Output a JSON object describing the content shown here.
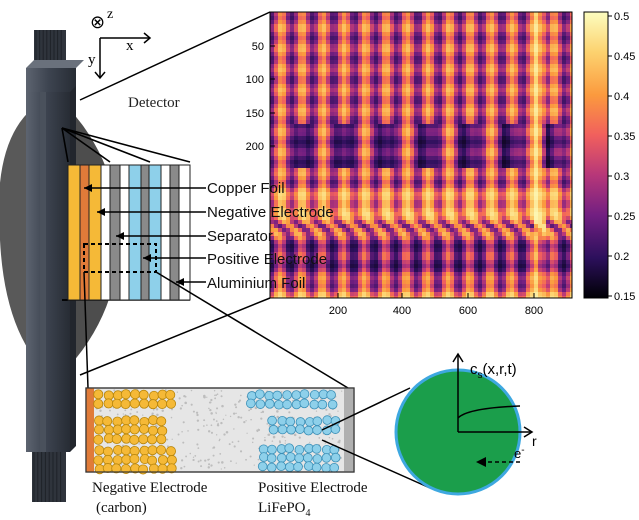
{
  "axes_glyph": {
    "z": "z",
    "x": "x",
    "y": "y",
    "into_page_symbol": "⊗"
  },
  "detector_label": "Detector",
  "layer_labels": [
    "Copper Foil",
    "Negative Electrode",
    "Separator",
    "Positive Electrode",
    "Aluminium Foil"
  ],
  "heatmap": {
    "x_ticks": [
      "200",
      "400",
      "600",
      "800"
    ],
    "y_ticks": [
      "50",
      "100",
      "150",
      "200"
    ],
    "colorbar_ticks": [
      "0.5",
      "0.45",
      "0.4",
      "0.35",
      "0.3",
      "0.25",
      "0.2",
      "0.15"
    ],
    "colormap": [
      "#000004",
      "#2c105c",
      "#721f81",
      "#b73779",
      "#f1605d",
      "#fb9a3e",
      "#fcd26f",
      "#fcfdbf"
    ]
  },
  "bottom_labels": {
    "neg_line1": "Negative Electrode",
    "neg_line2": "(carbon)",
    "pos_line1": "Positive Electrode",
    "pos_line2": "LiFePO",
    "pos_sub": "4"
  },
  "particle": {
    "label": "c",
    "label_sub": "s",
    "label_args": "(x,r,t)",
    "r_label": "r",
    "electron_label": "e",
    "electron_sup": "-"
  },
  "colors": {
    "copper": "#e07b39",
    "graphite": "#f5b937",
    "lifepo4": "#8ed0ea",
    "particle_fill": "#1b9e4b",
    "particle_edge": "#3ea8e0",
    "cell_body": "#3d4450",
    "detector": "#4d4d4d"
  }
}
